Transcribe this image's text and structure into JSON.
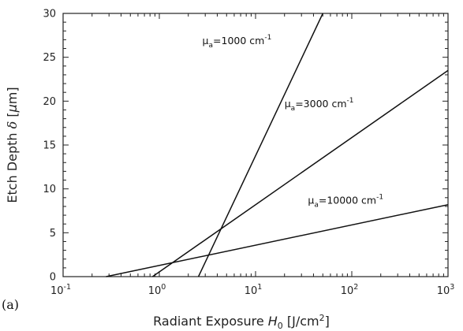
{
  "chart_data": {
    "type": "line",
    "panel_label": "(a)",
    "xlabel": {
      "pre": "Radiant Exposure ",
      "var": "H",
      "sub": "0",
      "post": " [J/cm",
      "sup": "2",
      "end": "]"
    },
    "ylabel": {
      "pre": "Etch Depth ",
      "var": "δ",
      "post": " [",
      "mu": "μ",
      "end": "m]"
    },
    "x_scale": "log",
    "xlim": [
      0.1,
      1000
    ],
    "ylim": [
      0,
      30
    ],
    "x_ticks": [
      {
        "value": 0.1,
        "base": "10",
        "exp": "-1"
      },
      {
        "value": 1,
        "base": "10",
        "exp": "0"
      },
      {
        "value": 10,
        "base": "10",
        "exp": "1"
      },
      {
        "value": 100,
        "base": "10",
        "exp": "2"
      },
      {
        "value": 1000,
        "base": "10",
        "exp": "3"
      }
    ],
    "y_ticks": [
      "0",
      "5",
      "10",
      "15",
      "20",
      "25",
      "30"
    ],
    "grid": false,
    "series": [
      {
        "name_pre": "μ",
        "name_sub": "a",
        "name_post": "=1000 cm",
        "name_sup": "-1",
        "x": [
          2.55,
          50
        ],
        "y": [
          0,
          30
        ],
        "label_x": 2.8,
        "label_y": 26.5
      },
      {
        "name_pre": "μ",
        "name_sub": "a",
        "name_post": "=3000 cm",
        "name_sup": "-1",
        "x": [
          0.85,
          1000
        ],
        "y": [
          0,
          23.5
        ],
        "label_x": 20,
        "label_y": 19.3
      },
      {
        "name_pre": "μ",
        "name_sub": "a",
        "name_post": "=10000 cm",
        "name_sup": "-1",
        "x": [
          0.28,
          1000
        ],
        "y": [
          0,
          8.2
        ],
        "label_x": 35,
        "label_y": 8.3
      }
    ]
  }
}
